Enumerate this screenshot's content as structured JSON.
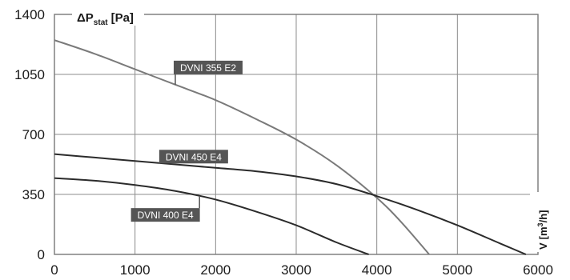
{
  "chart_data": {
    "type": "line",
    "title": "",
    "ylabel": "ΔP stat [Pa]",
    "ylabel_parts": {
      "symbol": "ΔP",
      "sub": "stat",
      "unit": "[Pa]"
    },
    "xlabel": "V [m³/h]",
    "xlabel_parts": {
      "symbol": "V",
      "unit_pre": "[m",
      "sup": "3",
      "unit_post": "/h]"
    },
    "xlim": [
      0,
      6000
    ],
    "ylim": [
      0,
      1400
    ],
    "x_ticks": [
      0,
      1000,
      2000,
      3000,
      4000,
      5000,
      6000
    ],
    "y_ticks": [
      0,
      350,
      700,
      1050,
      1400
    ],
    "grid": true,
    "legend": "inline labels",
    "series": [
      {
        "name": "DVNI 355 E2",
        "color": "#7a7a7a",
        "x": [
          0,
          500,
          1000,
          1500,
          2000,
          2500,
          3000,
          3500,
          4000,
          4300,
          4650
        ],
        "y": [
          1250,
          1170,
          1080,
          990,
          900,
          790,
          670,
          520,
          330,
          190,
          0
        ]
      },
      {
        "name": "DVNI 450 E4",
        "color": "#2b2b2b",
        "x": [
          0,
          500,
          1000,
          1500,
          2000,
          2500,
          3000,
          3500,
          4000,
          4500,
          5000,
          5500,
          5850
        ],
        "y": [
          585,
          565,
          545,
          525,
          505,
          485,
          455,
          410,
          340,
          260,
          170,
          70,
          0
        ]
      },
      {
        "name": "DVNI 400 E4",
        "color": "#2b2b2b",
        "x": [
          0,
          500,
          1000,
          1500,
          2000,
          2500,
          3000,
          3500,
          3900
        ],
        "y": [
          445,
          430,
          405,
          370,
          320,
          250,
          170,
          70,
          0
        ]
      }
    ],
    "annotations": [
      {
        "text": "DVNI 355 E2",
        "series": 0,
        "at_x": 1500,
        "box_x": 1480,
        "box_y": 1130
      },
      {
        "text": "DVNI 450 E4",
        "series": 1,
        "at_x": 1300,
        "box_x": 1300,
        "box_y": 610
      },
      {
        "text": "DVNI 400 E4",
        "series": 2,
        "at_x": 1800,
        "box_x": 950,
        "box_y": 270
      }
    ]
  }
}
